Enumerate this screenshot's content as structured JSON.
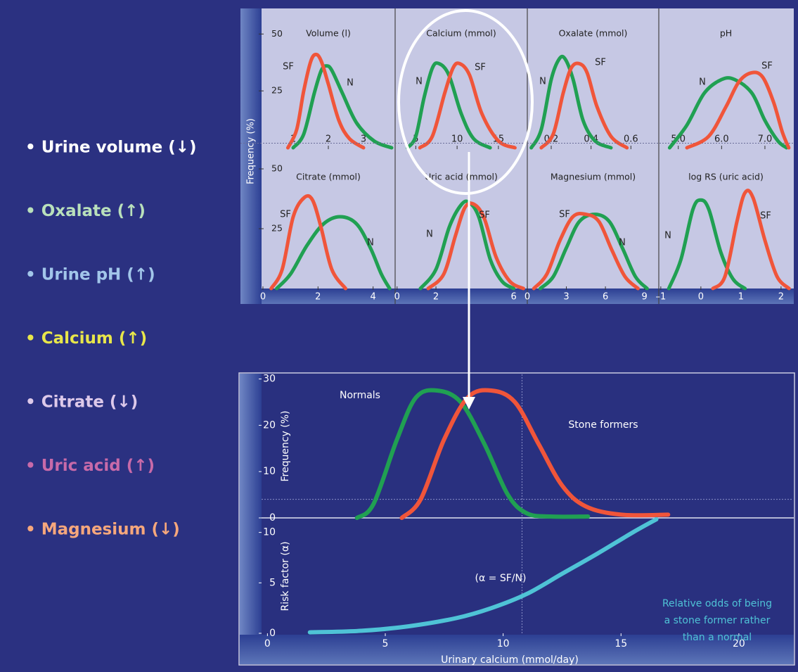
{
  "factors": [
    {
      "text": "• Urine volume (↓)",
      "color": "#ffffff"
    },
    {
      "text": "• Oxalate (↑)",
      "color": "#b9e0bb"
    },
    {
      "text": "• Urine pH (↑)",
      "color": "#a2c6ea"
    },
    {
      "text": "• Calcium (↑)",
      "color": "#e8e64a"
    },
    {
      "text": "• Citrate (↓)",
      "color": "#ddc9ea"
    },
    {
      "text": "• Uric acid (↑)",
      "color": "#c86aa9"
    },
    {
      "text": "• Magnesium (↓)",
      "color": "#f6a77c"
    }
  ],
  "top_ylabel": "Frequency (%)",
  "chart_data": [
    {
      "type": "line",
      "title": "Volume (l)",
      "xlim": [
        0.1,
        3.9
      ],
      "xticks": [
        1,
        2,
        3
      ],
      "ylim": [
        0,
        60
      ],
      "yticks": [
        25,
        50
      ],
      "ref_y": 2,
      "series": [
        {
          "name": "N",
          "color": "#20a052",
          "x": [
            1.0,
            1.3,
            1.6,
            1.8,
            1.95,
            2.1,
            2.4,
            2.8,
            3.3,
            3.8
          ],
          "values": [
            0,
            6,
            24,
            34,
            36,
            34,
            24,
            11,
            3,
            0
          ]
        },
        {
          "name": "SF",
          "color": "#f0553a",
          "x": [
            0.85,
            1.1,
            1.3,
            1.5,
            1.65,
            1.8,
            2.0,
            2.3,
            2.6,
            3.0
          ],
          "values": [
            0,
            8,
            25,
            38,
            41,
            38,
            28,
            12,
            4,
            0
          ]
        }
      ]
    },
    {
      "type": "line",
      "title": "Calcium (mmol)",
      "xlim": [
        2.5,
        18.5
      ],
      "xticks": [
        5,
        10,
        15
      ],
      "ylim": [
        0,
        60
      ],
      "ref_y": 2,
      "series": [
        {
          "name": "N",
          "color": "#20a052",
          "x": [
            4,
            5,
            6,
            7,
            7.8,
            9,
            10.5,
            12,
            14
          ],
          "values": [
            0,
            5,
            22,
            35,
            37,
            32,
            15,
            4,
            0
          ]
        },
        {
          "name": "SF",
          "color": "#f0553a",
          "x": [
            5.5,
            7,
            8.5,
            9.5,
            10.3,
            11.5,
            13,
            15,
            17
          ],
          "values": [
            0,
            5,
            24,
            35,
            37,
            32,
            15,
            3,
            0
          ]
        }
      ]
    },
    {
      "type": "line",
      "title": "Oxalate (mmol)",
      "xlim": [
        0.08,
        0.74
      ],
      "xticks": [
        0.2,
        0.4,
        0.6
      ],
      "ylim": [
        0,
        60
      ],
      "ref_y": 2,
      "series": [
        {
          "name": "N",
          "color": "#20a052",
          "x": [
            0.1,
            0.15,
            0.2,
            0.24,
            0.27,
            0.31,
            0.36,
            0.42,
            0.5
          ],
          "values": [
            0,
            8,
            30,
            39,
            39,
            30,
            12,
            3,
            0
          ]
        },
        {
          "name": "SF",
          "color": "#f0553a",
          "x": [
            0.15,
            0.21,
            0.26,
            0.3,
            0.34,
            0.38,
            0.43,
            0.5,
            0.58
          ],
          "values": [
            0,
            6,
            24,
            35,
            37,
            33,
            18,
            5,
            0
          ]
        }
      ]
    },
    {
      "type": "line",
      "title": "pH",
      "xlim": [
        4.55,
        7.65
      ],
      "xticks": [
        {
          "value": 5,
          "label": "5.0"
        },
        {
          "value": 6,
          "label": "6.0"
        },
        {
          "value": 7,
          "label": "7.0"
        }
      ],
      "ylim": [
        0,
        60
      ],
      "ref_y": 2,
      "series": [
        {
          "name": "N",
          "color": "#20a052",
          "x": [
            4.8,
            5.2,
            5.6,
            6.0,
            6.3,
            6.7,
            7.0,
            7.3,
            7.5
          ],
          "values": [
            0,
            10,
            24,
            30,
            30,
            24,
            12,
            3,
            0
          ]
        },
        {
          "name": "SF",
          "color": "#f0553a",
          "x": [
            5.2,
            5.7,
            6.1,
            6.4,
            6.7,
            6.95,
            7.2,
            7.4,
            7.55
          ],
          "values": [
            0,
            5,
            18,
            29,
            33,
            31,
            20,
            7,
            0
          ]
        }
      ]
    },
    {
      "type": "line",
      "title": "Citrate (mmol)",
      "xlim": [
        -0.05,
        4.8
      ],
      "xticks": [
        0,
        2,
        4
      ],
      "ylim": [
        0,
        60
      ],
      "yticks": [
        25,
        50
      ],
      "series": [
        {
          "name": "N",
          "color": "#20a052",
          "x": [
            0.5,
            1.0,
            1.6,
            2.2,
            2.8,
            3.4,
            3.9,
            4.3,
            4.6
          ],
          "values": [
            0,
            6,
            18,
            27,
            30,
            27,
            17,
            6,
            0
          ]
        },
        {
          "name": "SF",
          "color": "#f0553a",
          "x": [
            0.3,
            0.7,
            1.1,
            1.5,
            1.8,
            2.1,
            2.5,
            3.0
          ],
          "values": [
            0,
            8,
            30,
            38,
            37,
            26,
            8,
            0
          ]
        }
      ]
    },
    {
      "type": "line",
      "title": "Uric acid (mmol)",
      "xlim": [
        -0.1,
        6.7
      ],
      "xticks": [
        0,
        2,
        6
      ],
      "ylim": [
        0,
        60
      ],
      "series": [
        {
          "name": "N",
          "color": "#20a052",
          "x": [
            1.2,
            2.0,
            2.7,
            3.3,
            3.7,
            4.2,
            4.8,
            5.4,
            6.0
          ],
          "values": [
            0,
            8,
            26,
            35,
            36,
            30,
            12,
            3,
            0
          ]
        },
        {
          "name": "SF",
          "color": "#f0553a",
          "x": [
            1.6,
            2.4,
            3.0,
            3.5,
            4.0,
            4.5,
            5.1,
            5.8,
            6.5
          ],
          "values": [
            0,
            6,
            22,
            34,
            35,
            29,
            13,
            3,
            0
          ]
        }
      ]
    },
    {
      "type": "line",
      "title": "Magnesium (mmol)",
      "xlim": [
        0,
        10.1
      ],
      "xticks": [
        0,
        3,
        6,
        9
      ],
      "ylim": [
        0,
        60
      ],
      "series": [
        {
          "name": "N",
          "color": "#20a052",
          "x": [
            1.0,
            2.0,
            3.0,
            4.0,
            5.2,
            6.3,
            7.3,
            8.3,
            9.2
          ],
          "values": [
            0,
            5,
            17,
            28,
            31,
            28,
            17,
            5,
            0
          ]
        },
        {
          "name": "SF",
          "color": "#f0553a",
          "x": [
            0.5,
            1.5,
            2.5,
            3.5,
            4.5,
            5.5,
            6.5,
            7.5,
            8.5
          ],
          "values": [
            0,
            6,
            20,
            30,
            31,
            28,
            16,
            5,
            0
          ]
        }
      ]
    },
    {
      "type": "line",
      "title": "log RS (uric acid)",
      "xlim": [
        -1.05,
        2.3
      ],
      "xticks": [
        {
          "value": -1,
          "label": "–1"
        },
        0,
        1,
        2
      ],
      "ylim": [
        0,
        60
      ],
      "series": [
        {
          "name": "N",
          "color": "#20a052",
          "x": [
            -0.8,
            -0.5,
            -0.2,
            0,
            0.2,
            0.5,
            0.8,
            1.1
          ],
          "values": [
            0,
            12,
            33,
            37,
            33,
            15,
            4,
            0
          ]
        },
        {
          "name": "SF",
          "color": "#f0553a",
          "x": [
            0.3,
            0.6,
            0.9,
            1.1,
            1.3,
            1.6,
            1.9,
            2.2
          ],
          "values": [
            0,
            5,
            28,
            40,
            38,
            20,
            5,
            0
          ]
        }
      ]
    },
    {
      "type": "line",
      "ylabel": "Frequency (%)",
      "xlim": [
        -0.25,
        22.3
      ],
      "ylim": [
        0,
        31
      ],
      "yticks": [
        0,
        10,
        20,
        30
      ],
      "ref_x": 10.8,
      "ref_y": 4,
      "series": [
        {
          "name": "Normals",
          "color": "#20a052",
          "x": [
            3.8,
            4.5,
            5.5,
            6.3,
            7.2,
            8.2,
            9.2,
            10.2,
            11.0,
            12.0,
            13.6
          ],
          "values": [
            0,
            3,
            17,
            26,
            27.5,
            25,
            16,
            5,
            1,
            0.3,
            0.3
          ]
        },
        {
          "name": "Stone formers",
          "color": "#f0553a",
          "x": [
            5.7,
            6.5,
            7.5,
            8.5,
            9.5,
            10.5,
            11.5,
            12.5,
            13.5,
            15,
            17
          ],
          "values": [
            0,
            4,
            17,
            26,
            27.5,
            25,
            16,
            7,
            2.5,
            0.7,
            0.7
          ]
        }
      ]
    },
    {
      "type": "line",
      "ylabel": "Risk factor (α)",
      "xlabel": "Urinary calcium (mmol/day)",
      "xlim": [
        -0.25,
        22.3
      ],
      "xticks": [
        0,
        5,
        10,
        15,
        20
      ],
      "ylim": [
        0,
        11.3
      ],
      "yticks": [
        0,
        5,
        10
      ],
      "ref_x": 10.8,
      "annotations": [
        "(α = SF/N)",
        "Relative odds of being",
        "a stone former rather",
        "than a normal"
      ],
      "series": [
        {
          "color": "#4fc3d6",
          "x": [
            1.8,
            4,
            6,
            8,
            9.5,
            11,
            12.5,
            14,
            15.5,
            16.5
          ],
          "values": [
            0.1,
            0.25,
            0.7,
            1.5,
            2.5,
            3.9,
            5.9,
            7.9,
            10,
            11.3
          ]
        }
      ]
    }
  ]
}
